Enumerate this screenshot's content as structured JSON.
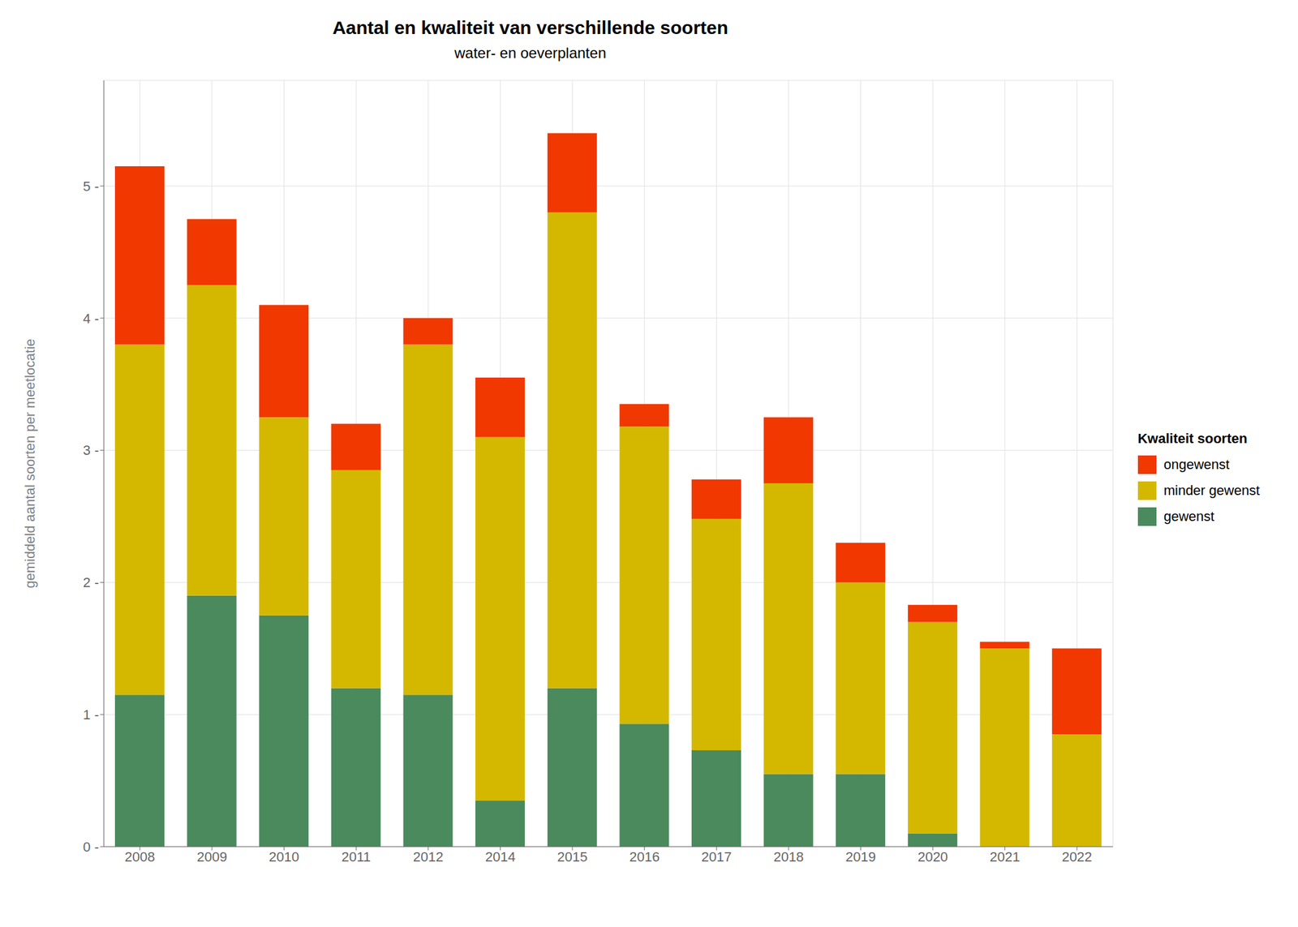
{
  "chart_data": {
    "type": "bar",
    "stacked": true,
    "title": "Aantal en kwaliteit van verschillende soorten",
    "subtitle": "water- en oeverplanten",
    "y_label": "gemiddeld aantal soorten per meetlocatie",
    "legend_title": "Kwaliteit soorten",
    "legend": "right",
    "grid": true,
    "categories": [
      "2008",
      "2009",
      "2010",
      "2011",
      "2012",
      "2014",
      "2015",
      "2016",
      "2017",
      "2018",
      "2019",
      "2020",
      "2021",
      "2022"
    ],
    "series": [
      {
        "name": "gewenst",
        "color": "#4a8a5d",
        "values": [
          1.15,
          1.9,
          1.75,
          1.2,
          1.15,
          0.35,
          1.2,
          0.93,
          0.73,
          0.55,
          0.55,
          0.1,
          0.0,
          0.0
        ]
      },
      {
        "name": "minder gewenst",
        "color": "#d4b800",
        "values": [
          2.65,
          2.35,
          1.5,
          1.65,
          2.65,
          2.75,
          3.6,
          2.25,
          1.75,
          2.2,
          1.45,
          1.6,
          1.5,
          0.85
        ]
      },
      {
        "name": "ongewenst",
        "color": "#f03800",
        "values": [
          1.35,
          0.5,
          0.85,
          0.35,
          0.2,
          0.45,
          0.6,
          0.17,
          0.3,
          0.5,
          0.3,
          0.13,
          0.05,
          0.65
        ]
      }
    ],
    "ylim": [
      0,
      5.8
    ],
    "yticks": [
      {
        "value": 0,
        "label": "0 -"
      },
      {
        "value": 1,
        "label": "1 -"
      },
      {
        "value": 2,
        "label": "2 -"
      },
      {
        "value": 3,
        "label": "3 -"
      },
      {
        "value": 4,
        "label": "4 -"
      },
      {
        "value": 5,
        "label": "5 -"
      }
    ]
  }
}
